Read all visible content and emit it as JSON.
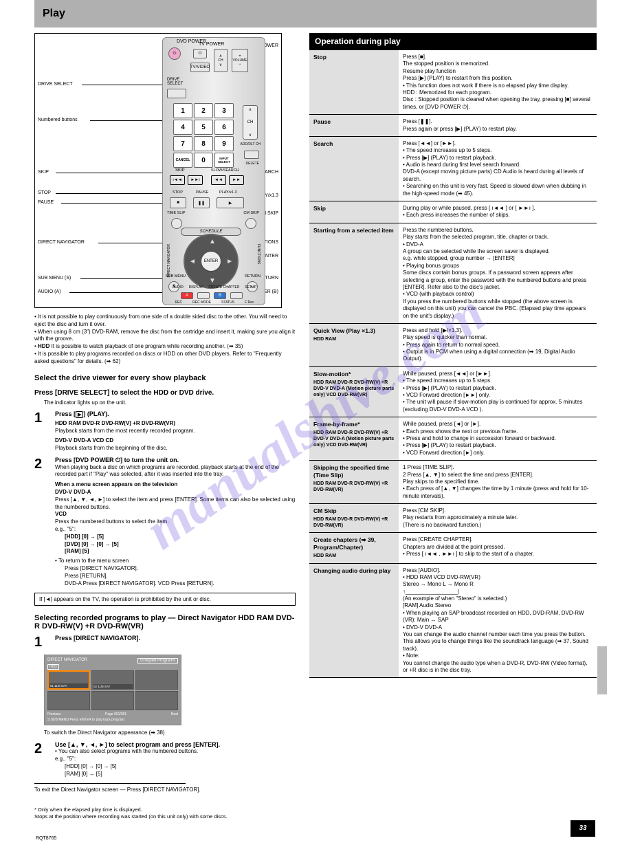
{
  "header_title": "Play",
  "remote": {
    "top_labels": {
      "dvd_power": "DVD POWER",
      "tv_power": "TV POWER",
      "tvvideo": "TV/VIDEO",
      "ch": "CH",
      "volume": "VOLUME"
    },
    "keypad": [
      "1",
      "2",
      "3",
      "4",
      "5",
      "6",
      "7",
      "8",
      "9",
      "CANCEL",
      "0",
      "INPUT SELECT"
    ],
    "side": {
      "ch": "CH",
      "adddlt": "ADD/DLT CH",
      "delete": "DELETE"
    },
    "transport": {
      "skip": "SKIP",
      "slow": "SLOW/SEARCH",
      "stop": "STOP",
      "pause": "PAUSE",
      "play": "PLAY/x1.3",
      "timeslip": "TIME SLIP",
      "cmskip": "CM SKIP"
    },
    "nav": {
      "schedule": "SCHEDULE",
      "direct_nav": "DIRECT NAVIGATOR",
      "functions": "FUNCTIONS",
      "submenu": "SUB MENU",
      "return": "RETURN",
      "enter": "ENTER"
    },
    "bottom": {
      "audio": "AUDIO",
      "display": "DISPLAY",
      "create_chapter": "CREATE CHAPTER",
      "setup": "SETUP",
      "rec": "REC",
      "recmode": "REC MODE",
      "status": "STATUS",
      "frec": "F Rec",
      "s": "S",
      "a": "A",
      "b": "B"
    },
    "callouts_left": [
      "DRIVE SELECT",
      "Numbered buttons",
      "SKIP",
      "STOP",
      "PAUSE",
      "DIRECT NAVIGATOR",
      "SUB MENU (S)",
      "AUDIO (A)"
    ],
    "callouts_right": [
      "DVD POWER",
      "SLOW/SEARCH",
      "PLAY/x1.3",
      "CM SKIP",
      "FUNCTIONS",
      "▲▼◄►, ENTER",
      "RETURN",
      "CREATE CHAPTER (B)"
    ]
  },
  "note1": {
    "line1": "• It is not possible to play continuously from one side of a double sided disc to the other. You will need to eject the disc and turn it over.",
    "line2_prefix": "• When using 8 cm (3″) DVD-RAM, remove the disc from the cartridge and insert it, making sure you align it with the groove.",
    "line3_head": "• ",
    "line3_badge": "HDD",
    "line3_rest": " It is possible to watch playback of one program while recording another. (➡ 35)",
    "line4": "• It is possible to play programs recorded on discs or HDD on other DVD players. Refer to \"Frequently asked questions\" for details. (➡ 62)"
  },
  "select_drive_heading": "Select the drive viewer for every show playback",
  "press_drive_heading": "Press [DRIVE SELECT] to select the HDD or DVD drive.",
  "press_drive_body": "The indicator lights up on the unit.",
  "step1": {
    "word": "Press [",
    "btn": "▶",
    "rest": "] (PLAY).",
    "badges": "HDD  RAM  DVD-R  DVD-RW(V)  +R  DVD-RW(VR)",
    "sub": "Playback starts from the most recently recorded program.",
    "badges2": "DVD-V  DVD-A  VCD  CD",
    "sub2": "Playback starts from the beginning of the disc."
  },
  "step2": {
    "head": "Press [DVD POWER ⏻] to turn the unit on.",
    "sub": "When playing back a disc on which programs are recorded, playback starts at the end of the recorded part if \"Play\" was selected, after it was inserted into the tray.",
    "when": "When a menu screen appears on the television",
    "badges": "DVD-V  DVD-A",
    "body": "Press [▲, ▼, ◄, ►] to select the item and press [ENTER]. Some items can also be selected using the numbered buttons.",
    "vcd": "VCD",
    "vcd_body": "Press the numbered buttons to select the item.",
    "eg": "e.g., \"5\":",
    "eg_rows": [
      "[HDD]     [0] → [5]",
      "[DVD]     [0] → [0] → [5]",
      "[RAM]     [5]"
    ],
    "return": "• To return to the menu screen",
    "return_rows": [
      "Press [DIRECT NAVIGATOR].",
      "Press [RETURN].",
      "DVD-A  Press [DIRECT NAVIGATOR].            VCD  Press [RETURN]."
    ]
  },
  "tip_box": "If [◄] appears on the TV, the operation is prohibited by the unit or disc.",
  "select_rec_heading": "Selecting recorded programs to play — Direct Navigator   HDD  RAM  DVD-R  DVD-RW(V)  +R  DVD-RW(VR)",
  "nav_steps": {
    "s1": "Press [DIRECT NAVIGATOR].",
    "s2": "Use [▲, ▼, ◄, ►] to select program and press [ENTER].",
    "bullet": "• You can also select programs with the numbered buttons.",
    "eg": "e.g., \"5\":",
    "eg_rows": [
      "[HDD]     [0] → [0] → [5]",
      "[RAM]     [0] → [5]"
    ]
  },
  "nav_screen": {
    "title": "DIRECT NAVIGATOR",
    "mode": "Grouped Programs",
    "hdd": "HDD",
    "thumbs": [
      "01           11/8 SAT",
      "02           11/8 SAT",
      "",
      "",
      "",
      ""
    ],
    "bottom_left": "Previous",
    "bottom_mid": "Page 001/001",
    "bottom_right": "Next",
    "hint": "S SUB MENU       Press ENTER to play back program."
  },
  "switch_note": "To switch the Direct Navigator appearance (➡ 38)",
  "exit_line": "To exit the Direct Navigator screen — Press [DIRECT NAVIGATOR].",
  "footnote": "* Only when the elapsed play time is displayed.\nStops at the position where recording was started (on this unit only) with some discs.",
  "black_strip": "Operation during play",
  "ops": [
    {
      "title": "Stop",
      "sub": "",
      "right": "Press [■].\nThe stopped position is memorized.\nResume play function\nPress [▶] (PLAY) to restart from this position.\n• This function does not work if there is no elapsed play time display.\nHDD : Memorized for each program.\nDisc : Stopped position is cleared when opening the tray, pressing [■] several times, or [DVD POWER ⏻]."
    },
    {
      "title": "Pause",
      "sub": "",
      "right": "Press [❚❚].\nPress again or press [▶] (PLAY) to restart play."
    },
    {
      "title": "Search",
      "sub": "",
      "right": "Press [◄◄] or [►►].\n• The speed increases up to 5 steps.\n• Press [▶] (PLAY) to restart playback.\n• Audio is heard during first level search forward.\n  DVD-A (except moving picture parts) CD  Audio is heard during all levels of search.\n• Searching on this unit is very fast. Speed is slowed down when dubbing in the high-speed mode (➡ 45)."
    },
    {
      "title": "Skip",
      "sub": "",
      "right": "During play or while paused, press [ ı◄◄ ] or [ ►►ı ].\n• Each press increases the number of skips."
    },
    {
      "title": "Starting from a selected item",
      "sub": "",
      "right": "Press the numbered buttons.\nPlay starts from the selected program, title, chapter or track.\n•  DVD-A\n  A group can be selected while the screen saver is displayed.\n  e.g. while stopped, group number → [ENTER]\n• Playing bonus groups\n  Some discs contain bonus groups. If a password screen appears after selecting a group, enter the password with the numbered buttons and press [ENTER]. Refer also to the disc's jacket.\n•  VCD (with playback control)\n  If you press the numbered buttons while stopped (the above screen is displayed on this unit) you can cancel the PBC. (Elapsed play time appears on the unit's display.)"
    },
    {
      "title": "Quick View (Play ×1.3)",
      "sub": "HDD  RAM",
      "right": "Press and hold [▶/×1.3].\nPlay speed is quicker than normal.\n• Press again to return to normal speed.\n• Output is in PCM when using a digital connection (➡ 19, Digital Audio Output)."
    },
    {
      "title": "Slow-motion*",
      "sub": "HDD  RAM  DVD-R  DVD-RW(V)  +R  DVD-V  DVD-A (Motion picture parts only)  VCD  DVD-RW(VR)",
      "right": "While paused, press [◄◄] or [►►].\n• The speed increases up to 5 steps.\n• Press [▶] (PLAY) to restart playback.\n•  VCD  Forward direction [►►] only.\n• The unit will pause if slow-motion play is continued for approx. 5 minutes (excluding  DVD-V  DVD-A  VCD )."
    },
    {
      "title": "Frame-by-frame*",
      "sub": "HDD  RAM  DVD-R  DVD-RW(V)  +R  DVD-V  DVD-A (Motion picture parts only)  VCD  DVD-RW(VR)",
      "right": "While paused, press [◄] or [►].\n• Each press shows the next or previous frame.\n• Press and hold to change in succession forward or backward.\n• Press [▶] (PLAY) to restart playback.\n•  VCD  Forward direction [►] only."
    },
    {
      "title": "Skipping the specified time (Time Slip)",
      "sub": "HDD  RAM  DVD-R  DVD-RW(V)  +R  DVD-RW(VR)",
      "right": "1 Press [TIME SLIP].\n2 Press [▲, ▼] to select the time and press [ENTER].\n   Play skips to the specified time.\n• Each press of [▲, ▼] changes the time by 1 minute (press and hold for 10-minute intervals)."
    },
    {
      "title": "CM Skip",
      "sub": "HDD  RAM  DVD-R  DVD-RW(V)  +R  DVD-RW(VR)",
      "right": "Press [CM SKIP].\nPlay restarts from approximately a minute later.\n(There is no backward function.)"
    },
    {
      "title": "Create chapters (➡ 39, Program/Chapter)",
      "sub": "HDD  RAM",
      "right": "Press [CREATE CHAPTER].\nChapters are divided at the point pressed.\n• Press [ ı◄◄ , ►►ı ] to skip to the start of a chapter."
    },
    {
      "title": "Changing audio during play",
      "sub": "",
      "right": "Press [AUDIO].\n•  HDD  RAM  VCD  DVD-RW(VR)\n   Stereo → Mono L → Mono R\n       ↑_________________|\n   (An example of when \"Stereo\" is selected.)\n   [RAM]  Audio  Stereo\n   • When playing an SAP broadcast recorded on HDD, DVD-RAM, DVD-RW (VR):  Main ↔ SAP\n•  DVD-V  DVD-A\n   You can change the audio channel number each time you press the button. This allows you to change things like the soundtrack language (➡ 37, Sound track).\n• Note:\n   You cannot change the audio type when a DVD-R, DVD-RW (Video format), or +R disc is in the disc tray."
    }
  ],
  "page_number": "33",
  "footer_id": "RQT8765"
}
